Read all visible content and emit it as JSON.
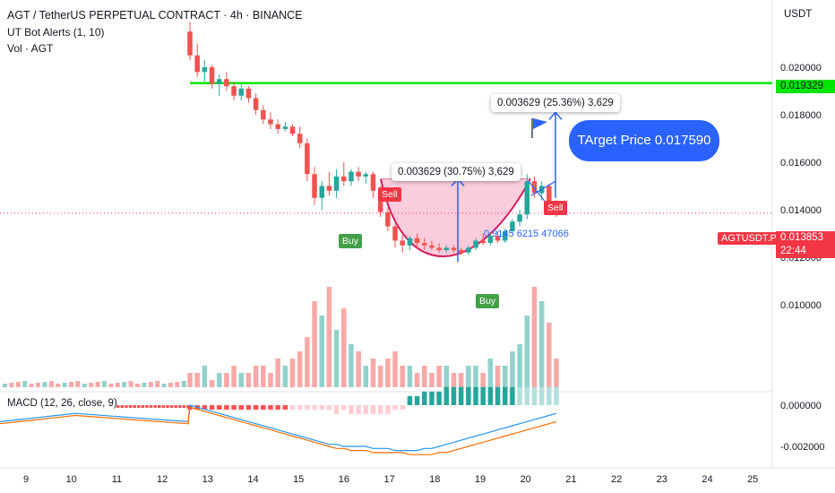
{
  "header": {
    "title": "AGT / TetherUS PERPETUAL CONTRACT · 4h · BINANCE",
    "indicator1": "UT Bot Alerts (1, 10)",
    "indicator2": "Vol · AGT",
    "macd": "MACD (12, 26, close, 9)"
  },
  "axis": {
    "unit": "USDT"
  },
  "tags": {
    "symbol": "AGTUSDT.P",
    "last_price": "0.013853",
    "countdown": "22:44",
    "resistance": "0.019329"
  },
  "annotations": {
    "measure_top": "0.003629 (25.36%) 3,629",
    "measure_mid": "0.003629 (30.75%) 3,629",
    "target": "TArget Price 0.017590",
    "fib_text": "0.9145 6215 47066",
    "signals": [
      "Sell",
      "Sell",
      "Buy",
      "Buy"
    ]
  },
  "colors": {
    "up": "#26a69a",
    "down": "#ef5350",
    "resistance_line": "#00e600",
    "accent": "#2962ff",
    "cup": "#d81b60",
    "cup_fill": "#f8bbd0"
  },
  "chart_data": {
    "type": "candlestick",
    "interval": "4h",
    "y_ticks": [
      "0.020000",
      "0.018000",
      "0.016000",
      "0.014000",
      "0.012000",
      "0.010000"
    ],
    "macd_ticks": [
      "0.000000",
      "-0.002000"
    ],
    "x_ticks": [
      "9",
      "10",
      "11",
      "12",
      "13",
      "14",
      "15",
      "16",
      "17",
      "18",
      "19",
      "20",
      "21",
      "22",
      "23",
      "24",
      "25"
    ],
    "resistance": 0.019329,
    "last_price": 0.013853,
    "target_price": 0.01759,
    "candles": [
      {
        "o": 0.0215,
        "h": 0.0219,
        "l": 0.0203,
        "c": 0.0205
      },
      {
        "o": 0.0205,
        "h": 0.021,
        "l": 0.0196,
        "c": 0.0198
      },
      {
        "o": 0.0198,
        "h": 0.0203,
        "l": 0.0194,
        "c": 0.02
      },
      {
        "o": 0.02,
        "h": 0.0201,
        "l": 0.0191,
        "c": 0.0193
      },
      {
        "o": 0.0193,
        "h": 0.0197,
        "l": 0.0188,
        "c": 0.0195
      },
      {
        "o": 0.0195,
        "h": 0.0198,
        "l": 0.019,
        "c": 0.0192
      },
      {
        "o": 0.0192,
        "h": 0.0194,
        "l": 0.0186,
        "c": 0.0188
      },
      {
        "o": 0.0188,
        "h": 0.0193,
        "l": 0.0186,
        "c": 0.0191
      },
      {
        "o": 0.0191,
        "h": 0.0192,
        "l": 0.0185,
        "c": 0.0187
      },
      {
        "o": 0.0187,
        "h": 0.0189,
        "l": 0.018,
        "c": 0.0182
      },
      {
        "o": 0.0182,
        "h": 0.0184,
        "l": 0.0176,
        "c": 0.0178
      },
      {
        "o": 0.0178,
        "h": 0.0181,
        "l": 0.0174,
        "c": 0.0176
      },
      {
        "o": 0.0176,
        "h": 0.0178,
        "l": 0.0172,
        "c": 0.0174
      },
      {
        "o": 0.0174,
        "h": 0.0177,
        "l": 0.0173,
        "c": 0.0175
      },
      {
        "o": 0.0175,
        "h": 0.0176,
        "l": 0.0171,
        "c": 0.0172
      },
      {
        "o": 0.0172,
        "h": 0.0175,
        "l": 0.0166,
        "c": 0.0168
      },
      {
        "o": 0.0168,
        "h": 0.017,
        "l": 0.0152,
        "c": 0.0155
      },
      {
        "o": 0.0155,
        "h": 0.0158,
        "l": 0.0142,
        "c": 0.0145
      },
      {
        "o": 0.0145,
        "h": 0.0152,
        "l": 0.014,
        "c": 0.015
      },
      {
        "o": 0.015,
        "h": 0.0156,
        "l": 0.0146,
        "c": 0.0148
      },
      {
        "o": 0.0148,
        "h": 0.0157,
        "l": 0.0145,
        "c": 0.0154
      },
      {
        "o": 0.0154,
        "h": 0.016,
        "l": 0.015,
        "c": 0.0152
      },
      {
        "o": 0.0152,
        "h": 0.0157,
        "l": 0.015,
        "c": 0.0156
      },
      {
        "o": 0.0156,
        "h": 0.0158,
        "l": 0.0152,
        "c": 0.0154
      },
      {
        "o": 0.0154,
        "h": 0.0156,
        "l": 0.0151,
        "c": 0.0155
      },
      {
        "o": 0.0155,
        "h": 0.0156,
        "l": 0.0145,
        "c": 0.0148
      },
      {
        "o": 0.0148,
        "h": 0.015,
        "l": 0.0137,
        "c": 0.0139
      },
      {
        "o": 0.0139,
        "h": 0.0141,
        "l": 0.0131,
        "c": 0.0133
      },
      {
        "o": 0.0133,
        "h": 0.0135,
        "l": 0.0124,
        "c": 0.0127
      },
      {
        "o": 0.0127,
        "h": 0.013,
        "l": 0.0122,
        "c": 0.0125
      },
      {
        "o": 0.0125,
        "h": 0.0129,
        "l": 0.0123,
        "c": 0.0128
      },
      {
        "o": 0.0128,
        "h": 0.013,
        "l": 0.0124,
        "c": 0.0126
      },
      {
        "o": 0.0126,
        "h": 0.0128,
        "l": 0.0123,
        "c": 0.0125
      },
      {
        "o": 0.0125,
        "h": 0.0127,
        "l": 0.0123,
        "c": 0.0124
      },
      {
        "o": 0.0124,
        "h": 0.0126,
        "l": 0.0122,
        "c": 0.0123
      },
      {
        "o": 0.0123,
        "h": 0.0125,
        "l": 0.0122,
        "c": 0.0124
      },
      {
        "o": 0.0124,
        "h": 0.0125,
        "l": 0.0122,
        "c": 0.0123
      },
      {
        "o": 0.0123,
        "h": 0.0124,
        "l": 0.0121,
        "c": 0.0122
      },
      {
        "o": 0.0122,
        "h": 0.0125,
        "l": 0.0121,
        "c": 0.0124
      },
      {
        "o": 0.0124,
        "h": 0.0128,
        "l": 0.0123,
        "c": 0.0127
      },
      {
        "o": 0.0127,
        "h": 0.013,
        "l": 0.0125,
        "c": 0.0126
      },
      {
        "o": 0.0126,
        "h": 0.013,
        "l": 0.0125,
        "c": 0.0129
      },
      {
        "o": 0.0129,
        "h": 0.0131,
        "l": 0.0126,
        "c": 0.0127
      },
      {
        "o": 0.0127,
        "h": 0.0132,
        "l": 0.0126,
        "c": 0.0131
      },
      {
        "o": 0.0131,
        "h": 0.0136,
        "l": 0.013,
        "c": 0.0135
      },
      {
        "o": 0.0135,
        "h": 0.014,
        "l": 0.0133,
        "c": 0.0138
      },
      {
        "o": 0.0138,
        "h": 0.0155,
        "l": 0.0136,
        "c": 0.0152
      },
      {
        "o": 0.0152,
        "h": 0.0154,
        "l": 0.0145,
        "c": 0.0147
      },
      {
        "o": 0.0147,
        "h": 0.0152,
        "l": 0.0144,
        "c": 0.015
      },
      {
        "o": 0.015,
        "h": 0.0151,
        "l": 0.014,
        "c": 0.0142
      },
      {
        "o": 0.0142,
        "h": 0.0144,
        "l": 0.0137,
        "c": 0.0139
      }
    ],
    "volume": [
      2,
      2,
      3,
      1,
      2,
      2,
      3,
      2,
      2,
      3,
      3,
      2,
      4,
      3,
      4,
      5,
      7,
      12,
      10,
      14,
      8,
      11,
      6,
      5,
      3,
      4,
      3,
      4,
      5,
      3,
      3,
      2,
      3,
      2,
      3,
      3,
      2,
      2,
      3,
      3,
      2,
      4,
      3,
      3,
      5,
      6,
      10,
      14,
      12,
      9,
      4
    ],
    "macd": [
      0.0,
      -0.0001,
      -0.0002,
      -0.0003,
      -0.0004,
      -0.0005,
      -0.0006,
      -0.0007,
      -0.0008,
      -0.0009,
      -0.001,
      -0.0011,
      -0.0012,
      -0.0013,
      -0.0014,
      -0.0015,
      -0.0016,
      -0.0017,
      -0.0018,
      -0.0019,
      -0.0019,
      -0.002,
      -0.002,
      -0.002,
      -0.002,
      -0.0021,
      -0.0021,
      -0.0021,
      -0.0022,
      -0.0022,
      -0.0022,
      -0.0022,
      -0.0021,
      -0.0021,
      -0.002,
      -0.0019,
      -0.0018,
      -0.0017,
      -0.0016,
      -0.0015,
      -0.0014,
      -0.0013,
      -0.0012,
      -0.0011,
      -0.001,
      -0.0009,
      -0.0008,
      -0.0007,
      -0.0006,
      -0.0005,
      -0.0004
    ],
    "signal": [
      -0.0001,
      -0.0002,
      -0.0003,
      -0.0004,
      -0.0005,
      -0.0006,
      -0.0007,
      -0.0008,
      -0.0009,
      -0.001,
      -0.0011,
      -0.0012,
      -0.0013,
      -0.0014,
      -0.0015,
      -0.0016,
      -0.0017,
      -0.0018,
      -0.0019,
      -0.002,
      -0.0021,
      -0.0021,
      -0.0022,
      -0.0022,
      -0.0022,
      -0.0023,
      -0.0023,
      -0.0023,
      -0.0023,
      -0.0023,
      -0.0024,
      -0.0024,
      -0.0024,
      -0.0024,
      -0.0023,
      -0.0023,
      -0.0022,
      -0.0021,
      -0.002,
      -0.0019,
      -0.0018,
      -0.0017,
      -0.0016,
      -0.0015,
      -0.0014,
      -0.0013,
      -0.0012,
      -0.0011,
      -0.001,
      -0.0009,
      -0.0008
    ],
    "histogram": [
      0.0001,
      0.0001,
      0.0001,
      0.0001,
      0.0001,
      0.0001,
      0.0001,
      0.0001,
      0.0001,
      0.0001,
      0.0001,
      0.0001,
      0.0001,
      0.0001,
      0.0001,
      0.0001,
      0.0001,
      0.0001,
      0.0001,
      0.0001,
      0.0002,
      0.0001,
      0.0002,
      0.0002,
      0.0002,
      0.0002,
      0.0002,
      0.0002,
      0.0001,
      0.0001,
      0.0002,
      0.0002,
      0.0003,
      0.0003,
      0.0003,
      0.0004,
      0.0004,
      0.0004,
      0.0004,
      0.0004,
      0.0004,
      0.0004,
      0.0004,
      0.0004,
      0.0004,
      0.0004,
      0.0004,
      0.0004,
      0.0004,
      0.0004,
      0.0004
    ]
  }
}
